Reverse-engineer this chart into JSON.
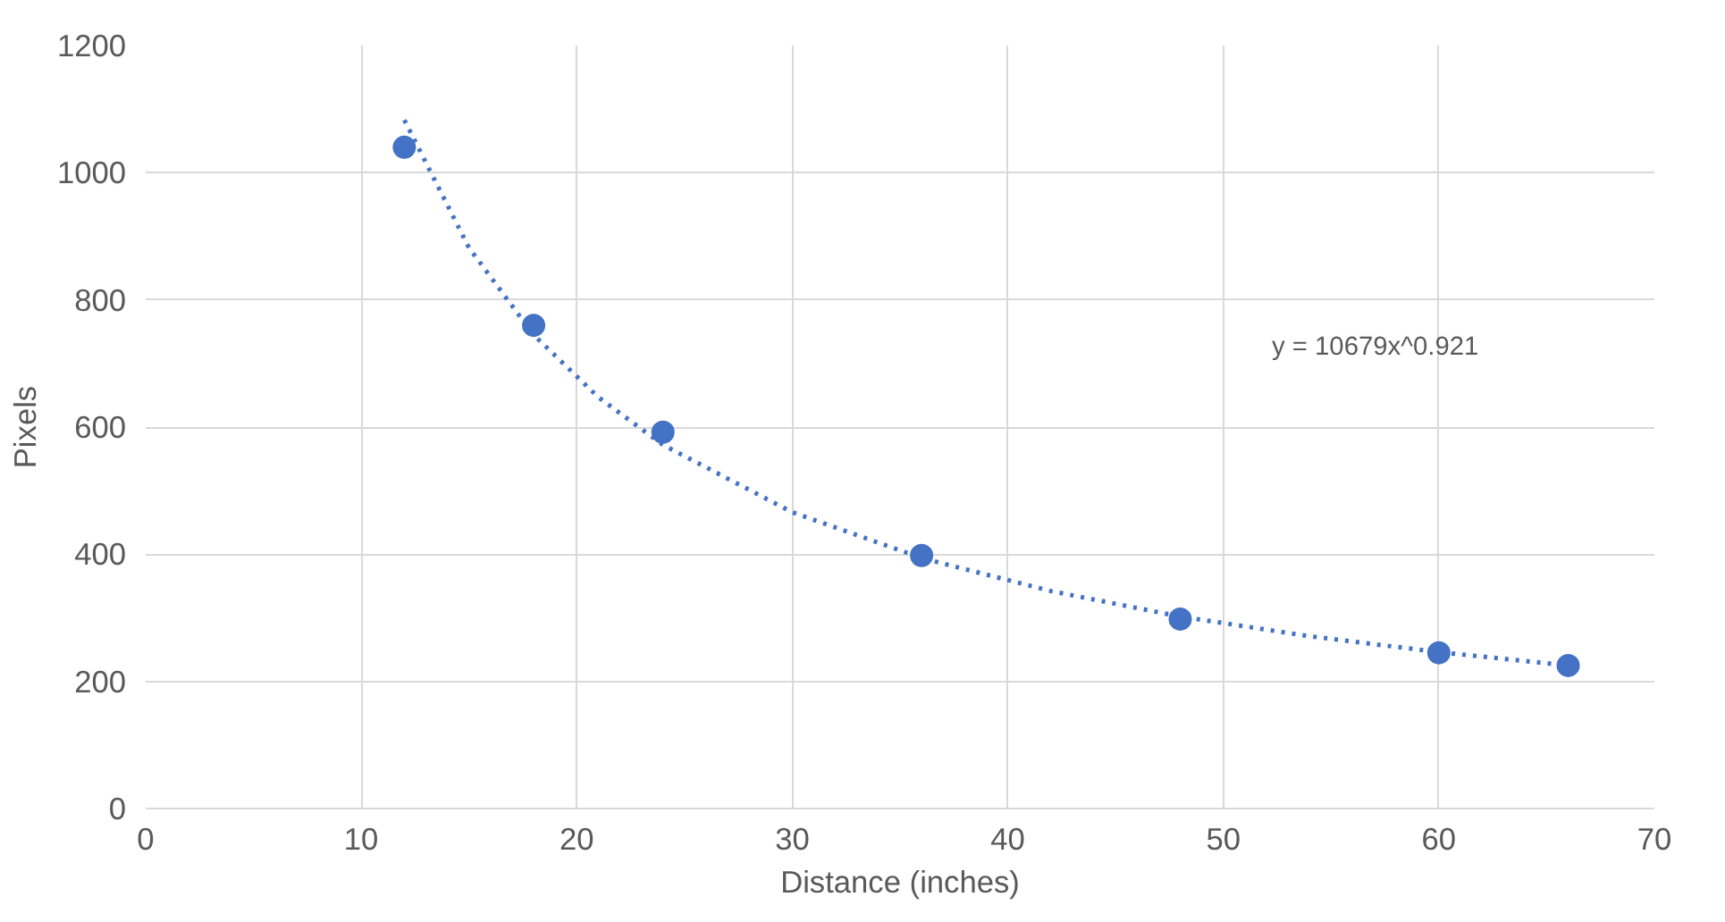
{
  "chart_data": {
    "type": "scatter",
    "xlabel": "Distance (inches)",
    "ylabel": "Pixels",
    "annotations": [
      "y = 10679x^0.921"
    ],
    "series": [
      {
        "color": "#4472c4",
        "marker": "circle",
        "x": [
          12,
          18,
          24,
          36,
          48,
          60,
          66
        ],
        "values": [
          1040,
          760,
          592,
          398,
          298,
          245,
          225
        ]
      },
      {
        "type": "line",
        "color": "#4472c4",
        "line_style": "dotted",
        "marker": "none",
        "x": [
          12,
          15,
          18,
          21,
          24,
          30,
          36,
          42,
          48,
          54,
          60,
          66
        ],
        "values": [
          1083,
          882,
          745,
          647,
          572,
          466,
          394,
          342,
          302,
          271,
          246,
          225
        ]
      }
    ],
    "xlim": [
      0,
      70
    ],
    "xticks": [
      0,
      10,
      20,
      30,
      40,
      50,
      60,
      70
    ],
    "ylim": [
      0,
      1200
    ],
    "yticks": [
      0,
      200,
      400,
      600,
      800,
      1000,
      1200
    ],
    "grid": true
  }
}
